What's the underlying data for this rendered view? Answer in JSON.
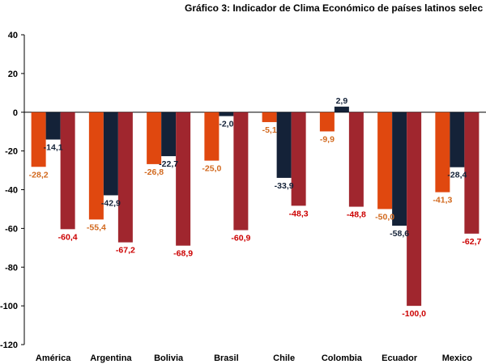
{
  "chart_data": {
    "type": "bar",
    "title": "Gráfico 3: Indicador de Clima Económico de países latinos selec",
    "categories": [
      "América",
      "Argentina",
      "Bolivia",
      "Brasil",
      "Chile",
      "Colombia",
      "Ecuador",
      "Mexico"
    ],
    "series": [
      {
        "color": "#e0480f",
        "label_color": "#d2691e",
        "values": [
          -28.2,
          -55.4,
          -26.8,
          -25.0,
          -5.1,
          -9.9,
          -50.0,
          -41.3
        ],
        "labels": [
          "-28,2",
          "-55,4",
          "-26,8",
          "-25,0",
          "-5,1",
          "-9,9",
          "-50,0",
          "-41,3"
        ]
      },
      {
        "color": "#142238",
        "label_color": "#142238",
        "values": [
          -14.1,
          -42.9,
          -22.7,
          -2.0,
          -33.9,
          2.9,
          -58.6,
          -28.4
        ],
        "labels": [
          "-14,1",
          "-42,9",
          "-22,7",
          "-2,0",
          "-33,9",
          "2,9",
          "-58,6",
          "-28,4"
        ]
      },
      {
        "color": "#a0262e",
        "label_color": "#cc0000",
        "values": [
          -60.4,
          -67.2,
          -68.9,
          -60.9,
          -48.3,
          -48.8,
          -100.0,
          -62.7
        ],
        "labels": [
          "-60,4",
          "-67,2",
          "-68,9",
          "-60,9",
          "-48,3",
          "-48,8",
          "-100,0",
          "-62,7"
        ]
      }
    ],
    "yticks": [
      40,
      20,
      0,
      -20,
      -40,
      -60,
      -80,
      -100,
      -120
    ],
    "ylim": [
      -120,
      40
    ],
    "grid": false,
    "legend": "none"
  }
}
